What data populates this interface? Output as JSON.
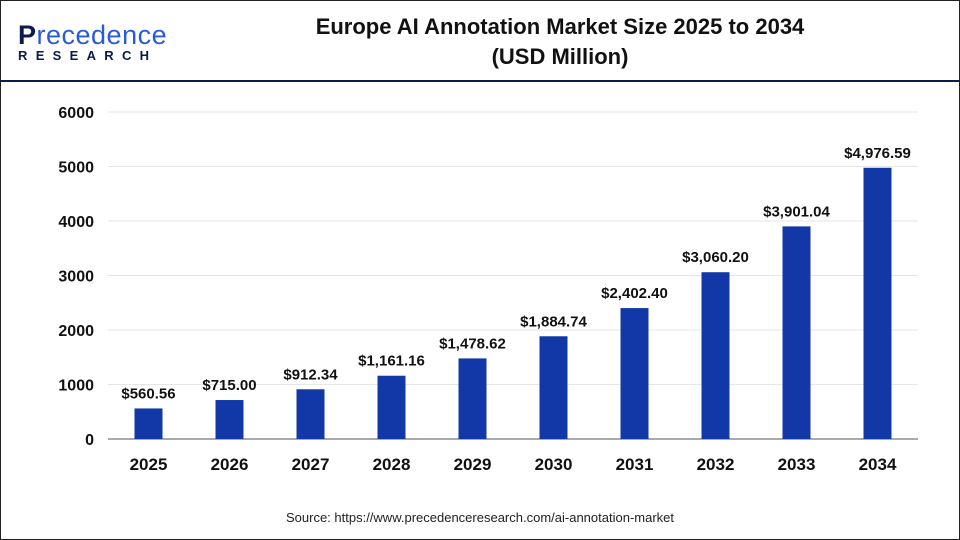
{
  "logo": {
    "line1": "Precedence",
    "line2": "RESEARCH"
  },
  "title_line1": "Europe AI Annotation Market Size 2025 to 2034",
  "title_line2": "(USD Million)",
  "source": "Source: https://www.precedenceresearch.com/ai-annotation-market",
  "chart_data": {
    "type": "bar",
    "title": "Europe AI Annotation Market Size 2025 to 2034 (USD Million)",
    "categories": [
      "2025",
      "2026",
      "2027",
      "2028",
      "2029",
      "2030",
      "2031",
      "2032",
      "2033",
      "2034"
    ],
    "values": [
      560.56,
      715.0,
      912.34,
      1161.16,
      1478.62,
      1884.74,
      2402.4,
      3060.2,
      3901.04,
      4976.59
    ],
    "data_labels": [
      "$560.56",
      "$715.00",
      "$912.34",
      "$1,161.16",
      "$1,478.62",
      "$1,884.74",
      "$2,402.40",
      "$3,060.20",
      "$3,901.04",
      "$4,976.59"
    ],
    "yticks": [
      0,
      1000,
      2000,
      3000,
      4000,
      5000,
      6000
    ],
    "ylim": [
      0,
      6000
    ],
    "grid": true,
    "bar_color": "#1238a8"
  }
}
